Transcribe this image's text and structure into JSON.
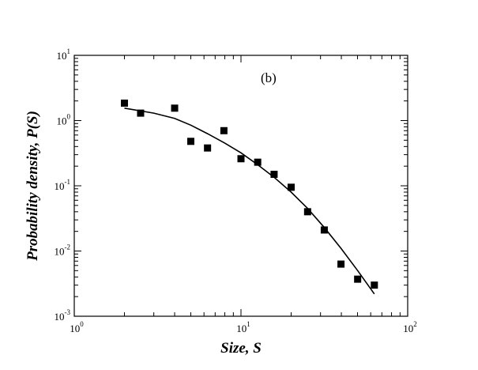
{
  "chart_data": {
    "type": "scatter",
    "title": "",
    "panel_label": "(b)",
    "xlabel": "Size, S",
    "ylabel": "Probability density, P(S)",
    "x_scale": "log",
    "y_scale": "log",
    "xlim": [
      1,
      100
    ],
    "ylim": [
      0.001,
      10
    ],
    "x_ticks": [
      {
        "value": 1,
        "base": "10",
        "exp": "0"
      },
      {
        "value": 10,
        "base": "10",
        "exp": "1"
      },
      {
        "value": 100,
        "base": "10",
        "exp": "2"
      }
    ],
    "y_ticks": [
      {
        "value": 0.001,
        "base": "10",
        "exp": "-3"
      },
      {
        "value": 0.01,
        "base": "10",
        "exp": "-2"
      },
      {
        "value": 0.1,
        "base": "10",
        "exp": "-1"
      },
      {
        "value": 1,
        "base": "10",
        "exp": "0"
      },
      {
        "value": 10,
        "base": "10",
        "exp": "1"
      }
    ],
    "grid": false,
    "legend": "none",
    "series": [
      {
        "type": "scatter",
        "marker": "square",
        "color": "#000000",
        "points": [
          {
            "x": 2.0,
            "y": 1.85
          },
          {
            "x": 2.5,
            "y": 1.3
          },
          {
            "x": 4.0,
            "y": 1.55
          },
          {
            "x": 5.0,
            "y": 0.48
          },
          {
            "x": 6.3,
            "y": 0.38
          },
          {
            "x": 7.9,
            "y": 0.7
          },
          {
            "x": 10.0,
            "y": 0.26
          },
          {
            "x": 12.6,
            "y": 0.23
          },
          {
            "x": 15.8,
            "y": 0.15
          },
          {
            "x": 20.0,
            "y": 0.095
          },
          {
            "x": 25.1,
            "y": 0.04
          },
          {
            "x": 31.6,
            "y": 0.021
          },
          {
            "x": 39.8,
            "y": 0.0063
          },
          {
            "x": 50.1,
            "y": 0.0037
          },
          {
            "x": 63.1,
            "y": 0.003
          }
        ]
      },
      {
        "type": "line",
        "color": "#000000",
        "points": [
          {
            "x": 2.0,
            "y": 1.55
          },
          {
            "x": 3.0,
            "y": 1.3
          },
          {
            "x": 4.0,
            "y": 1.08
          },
          {
            "x": 5.0,
            "y": 0.85
          },
          {
            "x": 6.3,
            "y": 0.63
          },
          {
            "x": 8.0,
            "y": 0.45
          },
          {
            "x": 10.0,
            "y": 0.32
          },
          {
            "x": 12.6,
            "y": 0.21
          },
          {
            "x": 15.8,
            "y": 0.135
          },
          {
            "x": 20.0,
            "y": 0.08
          },
          {
            "x": 25.1,
            "y": 0.045
          },
          {
            "x": 31.6,
            "y": 0.023
          },
          {
            "x": 39.8,
            "y": 0.011
          },
          {
            "x": 50.1,
            "y": 0.005
          },
          {
            "x": 63.1,
            "y": 0.0022
          }
        ]
      }
    ]
  }
}
